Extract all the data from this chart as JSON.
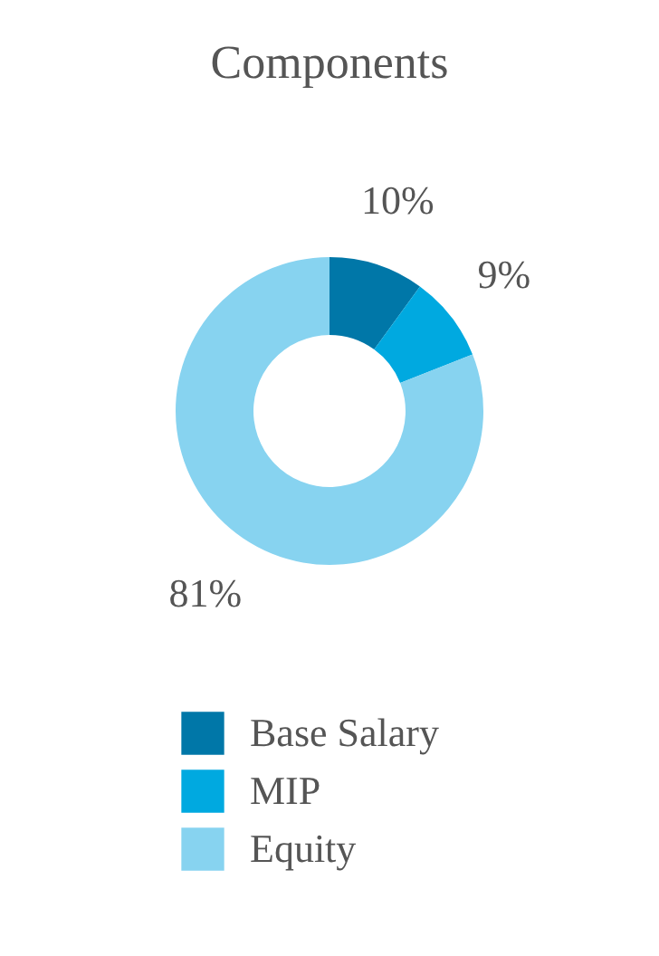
{
  "chart_data": {
    "type": "donut",
    "title": "Components",
    "categories": [
      "Base Salary",
      "MIP",
      "Equity"
    ],
    "values": [
      10,
      9,
      81
    ],
    "colors": [
      "#0077a8",
      "#00a9e0",
      "#87d3f0"
    ],
    "value_labels": [
      "10%",
      "9%",
      "81%"
    ],
    "legend": "bottom"
  }
}
